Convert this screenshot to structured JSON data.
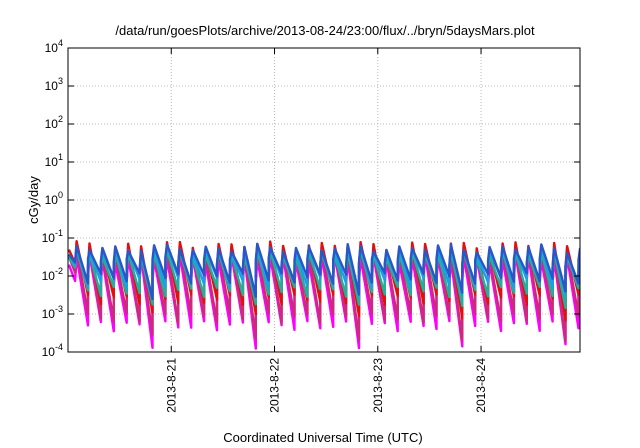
{
  "chart_data": {
    "type": "line",
    "title": "/data/run/goesPlots/archive/2013-08-24/23:00/flux/../bryn/5daysMars.plot",
    "xlabel": "Coordinated Universal Time (UTC)",
    "ylabel": "cGy/day",
    "yscale": "log",
    "ylim": [
      0.0001,
      10000
    ],
    "y_ticks": [
      {
        "base": "10",
        "exp": "-4"
      },
      {
        "base": "10",
        "exp": "-3"
      },
      {
        "base": "10",
        "exp": "-2"
      },
      {
        "base": "10",
        "exp": "-1"
      },
      {
        "base": "10",
        "exp": "0"
      },
      {
        "base": "10",
        "exp": "1"
      },
      {
        "base": "10",
        "exp": "2"
      },
      {
        "base": "10",
        "exp": "3"
      },
      {
        "base": "10",
        "exp": "4"
      }
    ],
    "x_range": [
      "2013-08-20 00:00",
      "2013-08-24 23:00"
    ],
    "x_ticks": [
      {
        "label": "2013-8-21",
        "value": "2013-08-21 00:00"
      },
      {
        "label": "2013-8-22",
        "value": "2013-08-22 00:00"
      },
      {
        "label": "2013-8-23",
        "value": "2013-08-23 00:00"
      },
      {
        "label": "2013-8-24",
        "value": "2013-08-24 00:00"
      }
    ],
    "grid": true,
    "legend": "none",
    "pattern": {
      "oscillation_period_hours": 3,
      "first_peak_time": "2013-08-20 02:00"
    },
    "series": [
      {
        "color": "#ff00ff",
        "peak": 0.03,
        "trough": 0.0005
      },
      {
        "color": "#cc2a7a",
        "peak": 0.045,
        "trough": 0.0008
      },
      {
        "color": "#e01010",
        "peak": 0.065,
        "trough": 0.0025
      },
      {
        "color": "#20b0a0",
        "peak": 0.04,
        "trough": 0.004
      },
      {
        "color": "#1aa0e6",
        "peak": 0.05,
        "trough": 0.007
      },
      {
        "color": "#2a56c8",
        "peak": 0.055,
        "trough": 0.009
      }
    ]
  }
}
